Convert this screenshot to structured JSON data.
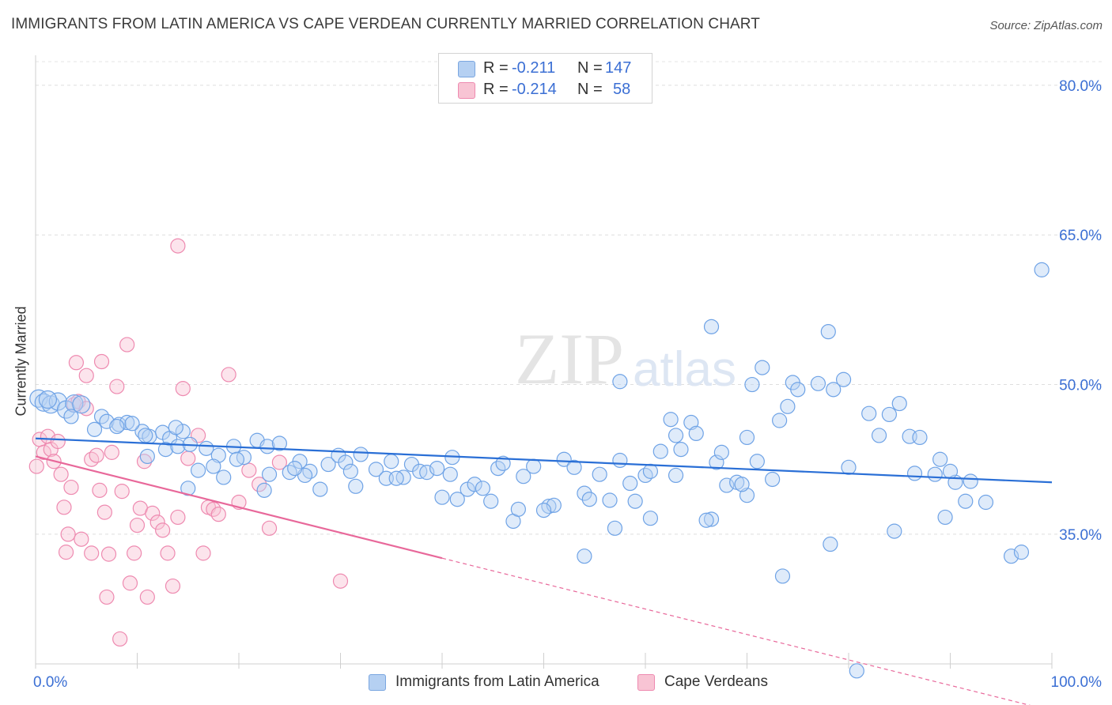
{
  "title": "IMMIGRANTS FROM LATIN AMERICA VS CAPE VERDEAN CURRENTLY MARRIED CORRELATION CHART",
  "source": "Source: ZipAtlas.com",
  "watermark": "ZIPatlas",
  "legend": {
    "r_label": "R =",
    "n_label": "N =",
    "series1": {
      "r": "-0.211",
      "n": "147"
    },
    "series2": {
      "r": "-0.214",
      "n": "58"
    }
  },
  "chart_data": {
    "type": "scatter",
    "title": "IMMIGRANTS FROM LATIN AMERICA VS CAPE VERDEAN CURRENTLY MARRIED CORRELATION CHART",
    "xlabel": "",
    "ylabel": "Currently Married",
    "xlim": [
      0,
      100
    ],
    "ylim": [
      22,
      83
    ],
    "x_tick_labels": [
      "0.0%",
      "100.0%"
    ],
    "y_ticks": [
      35,
      50,
      65,
      80
    ],
    "y_tick_labels": [
      "35.0%",
      "50.0%",
      "65.0%",
      "80.0%"
    ],
    "grid": true,
    "colors": {
      "blue": "#6fa3e6",
      "pink": "#ee8ab0",
      "blue_line": "#2a6fd6",
      "pink_line": "#e8689a"
    },
    "series": [
      {
        "name": "Immigrants from Latin America",
        "color": "#6fa3e6",
        "trend": {
          "x": [
            0,
            100
          ],
          "y": [
            44.6,
            40.2
          ]
        },
        "points": [
          [
            0.3,
            48.6
          ],
          [
            0.8,
            48.2
          ],
          [
            1.5,
            48.0
          ],
          [
            2.2,
            48.3
          ],
          [
            3.0,
            47.5
          ],
          [
            3.8,
            48.1
          ],
          [
            4.5,
            48.0
          ],
          [
            1.2,
            48.5
          ],
          [
            3.5,
            46.8
          ],
          [
            6.5,
            46.8
          ],
          [
            7.0,
            46.3
          ],
          [
            8.2,
            46.0
          ],
          [
            9.0,
            46.2
          ],
          [
            5.8,
            45.5
          ],
          [
            10.5,
            45.3
          ],
          [
            11.2,
            44.8
          ],
          [
            12.5,
            45.2
          ],
          [
            13.2,
            44.6
          ],
          [
            14.5,
            45.3
          ],
          [
            12.8,
            43.5
          ],
          [
            14.0,
            43.8
          ],
          [
            15.2,
            44.0
          ],
          [
            16.8,
            43.6
          ],
          [
            18.0,
            42.9
          ],
          [
            19.5,
            43.8
          ],
          [
            20.5,
            42.7
          ],
          [
            21.8,
            44.4
          ],
          [
            22.8,
            43.8
          ],
          [
            24.0,
            44.1
          ],
          [
            17.5,
            41.8
          ],
          [
            18.5,
            40.7
          ],
          [
            19.8,
            42.5
          ],
          [
            22.5,
            39.4
          ],
          [
            23.0,
            41.0
          ],
          [
            25.0,
            41.2
          ],
          [
            26.0,
            42.3
          ],
          [
            27.0,
            41.3
          ],
          [
            28.0,
            39.5
          ],
          [
            28.8,
            42.0
          ],
          [
            29.8,
            42.9
          ],
          [
            30.5,
            42.2
          ],
          [
            31.0,
            41.3
          ],
          [
            32.0,
            43.0
          ],
          [
            33.5,
            41.5
          ],
          [
            34.5,
            40.6
          ],
          [
            35.0,
            42.3
          ],
          [
            36.2,
            40.7
          ],
          [
            37.0,
            42.0
          ],
          [
            37.8,
            41.3
          ],
          [
            38.5,
            41.2
          ],
          [
            39.5,
            41.6
          ],
          [
            40.0,
            38.7
          ],
          [
            40.8,
            41.0
          ],
          [
            41.5,
            38.5
          ],
          [
            42.5,
            39.5
          ],
          [
            43.2,
            40.0
          ],
          [
            44.0,
            39.6
          ],
          [
            44.8,
            38.3
          ],
          [
            45.5,
            41.6
          ],
          [
            46.0,
            42.1
          ],
          [
            47.0,
            36.3
          ],
          [
            47.5,
            37.5
          ],
          [
            48.0,
            40.8
          ],
          [
            49.0,
            41.8
          ],
          [
            50.5,
            37.8
          ],
          [
            51.0,
            37.9
          ],
          [
            52.0,
            42.5
          ],
          [
            53.0,
            41.7
          ],
          [
            54.0,
            39.1
          ],
          [
            54.5,
            38.5
          ],
          [
            55.5,
            41.0
          ],
          [
            56.5,
            38.4
          ],
          [
            57.5,
            42.4
          ],
          [
            58.5,
            40.1
          ],
          [
            59.0,
            38.3
          ],
          [
            60.0,
            40.9
          ],
          [
            60.5,
            36.6
          ],
          [
            61.5,
            43.3
          ],
          [
            62.5,
            46.5
          ],
          [
            63.0,
            40.9
          ],
          [
            64.5,
            46.2
          ],
          [
            65.0,
            45.1
          ],
          [
            66.5,
            36.5
          ],
          [
            67.0,
            42.2
          ],
          [
            68.0,
            39.9
          ],
          [
            69.0,
            40.2
          ],
          [
            70.0,
            38.9
          ],
          [
            71.0,
            42.3
          ],
          [
            72.5,
            40.5
          ],
          [
            74.0,
            47.8
          ],
          [
            74.5,
            50.2
          ],
          [
            75.0,
            49.5
          ],
          [
            60.5,
            41.3
          ],
          [
            57.5,
            50.3
          ],
          [
            63.5,
            43.5
          ],
          [
            66.5,
            55.8
          ],
          [
            70.5,
            50.0
          ],
          [
            71.5,
            51.7
          ],
          [
            73.2,
            46.4
          ],
          [
            77.0,
            50.1
          ],
          [
            78.0,
            55.3
          ],
          [
            78.5,
            49.5
          ],
          [
            79.5,
            50.5
          ],
          [
            66.0,
            36.4
          ],
          [
            69.5,
            40.0
          ],
          [
            73.5,
            30.8
          ],
          [
            80.0,
            41.7
          ],
          [
            82.0,
            47.1
          ],
          [
            83.0,
            44.9
          ],
          [
            84.0,
            47.0
          ],
          [
            85.0,
            48.1
          ],
          [
            86.0,
            44.8
          ],
          [
            87.0,
            44.7
          ],
          [
            88.5,
            41.0
          ],
          [
            89.5,
            36.7
          ],
          [
            90.5,
            40.2
          ],
          [
            91.5,
            38.3
          ],
          [
            93.5,
            38.2
          ],
          [
            96.0,
            32.8
          ],
          [
            97.0,
            33.2
          ],
          [
            84.5,
            35.3
          ],
          [
            63.0,
            44.9
          ],
          [
            67.5,
            43.2
          ],
          [
            70.0,
            44.7
          ],
          [
            78.2,
            34.0
          ],
          [
            80.8,
            21.3
          ],
          [
            99.0,
            61.5
          ],
          [
            90.0,
            41.3
          ],
          [
            92.0,
            40.3
          ],
          [
            57.0,
            35.6
          ],
          [
            54.0,
            32.8
          ],
          [
            50.0,
            37.4
          ],
          [
            86.5,
            41.1
          ],
          [
            89.0,
            42.5
          ],
          [
            41.0,
            42.7
          ],
          [
            35.5,
            40.6
          ],
          [
            31.5,
            39.8
          ],
          [
            26.5,
            40.9
          ],
          [
            25.5,
            41.6
          ],
          [
            16.0,
            41.4
          ],
          [
            15.0,
            39.6
          ],
          [
            11.0,
            42.8
          ],
          [
            9.5,
            46.1
          ],
          [
            8.0,
            45.8
          ],
          [
            10.8,
            44.9
          ],
          [
            13.8,
            45.7
          ]
        ]
      },
      {
        "name": "Cape Verdeans",
        "color": "#ee8ab0",
        "trend": {
          "x": [
            0,
            40
          ],
          "y": [
            42.8,
            32.6
          ]
        },
        "trend_extension": {
          "x": [
            40,
            100
          ],
          "y": [
            32.6,
            17.3
          ]
        },
        "points": [
          [
            0.1,
            41.8
          ],
          [
            0.4,
            44.5
          ],
          [
            0.8,
            43.2
          ],
          [
            1.2,
            44.8
          ],
          [
            1.5,
            43.5
          ],
          [
            1.8,
            42.3
          ],
          [
            2.2,
            44.3
          ],
          [
            2.5,
            41.0
          ],
          [
            2.8,
            37.7
          ],
          [
            3.2,
            35.0
          ],
          [
            3.5,
            39.7
          ],
          [
            3.8,
            48.0
          ],
          [
            4.2,
            48.3
          ],
          [
            4.5,
            34.5
          ],
          [
            5.0,
            47.6
          ],
          [
            5.5,
            42.5
          ],
          [
            6.0,
            42.9
          ],
          [
            6.3,
            39.4
          ],
          [
            6.8,
            37.2
          ],
          [
            7.2,
            33.0
          ],
          [
            7.5,
            43.2
          ],
          [
            8.0,
            49.8
          ],
          [
            8.5,
            39.3
          ],
          [
            9.0,
            54.0
          ],
          [
            9.3,
            30.1
          ],
          [
            9.7,
            33.1
          ],
          [
            10.0,
            35.9
          ],
          [
            10.3,
            37.6
          ],
          [
            10.7,
            42.3
          ],
          [
            11.0,
            28.7
          ],
          [
            11.5,
            37.1
          ],
          [
            12.0,
            36.2
          ],
          [
            12.5,
            35.4
          ],
          [
            13.0,
            33.1
          ],
          [
            13.5,
            29.8
          ],
          [
            14.0,
            36.7
          ],
          [
            14.5,
            49.6
          ],
          [
            15.0,
            42.6
          ],
          [
            16.0,
            44.9
          ],
          [
            16.5,
            33.1
          ],
          [
            17.0,
            37.7
          ],
          [
            17.5,
            37.5
          ],
          [
            18.0,
            37.0
          ],
          [
            19.0,
            51.0
          ],
          [
            20.0,
            38.2
          ],
          [
            21.0,
            41.4
          ],
          [
            22.0,
            40.0
          ],
          [
            23.0,
            35.6
          ],
          [
            24.0,
            42.2
          ],
          [
            30.0,
            30.3
          ],
          [
            14.0,
            63.9
          ],
          [
            4.0,
            52.2
          ],
          [
            5.0,
            50.9
          ],
          [
            7.0,
            28.7
          ],
          [
            8.3,
            24.5
          ],
          [
            3.0,
            33.2
          ],
          [
            5.5,
            33.1
          ],
          [
            6.5,
            52.3
          ]
        ]
      }
    ]
  },
  "bottom_legend": {
    "item1": "Immigrants from Latin America",
    "item2": "Cape Verdeans"
  }
}
